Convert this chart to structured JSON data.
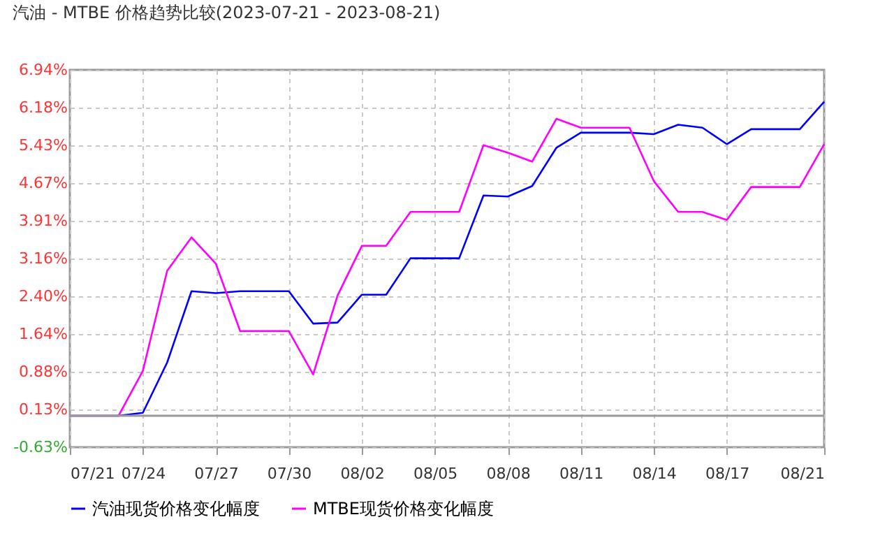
{
  "chart_data": {
    "type": "line",
    "title": "汽油 - MTBE 价格趋势比较(2023-07-21 - 2023-08-21)",
    "x": [
      "2023-07-21",
      "2023-07-22",
      "2023-07-23",
      "2023-07-24",
      "2023-07-25",
      "2023-07-26",
      "2023-07-27",
      "2023-07-28",
      "2023-07-29",
      "2023-07-30",
      "2023-07-31",
      "2023-08-01",
      "2023-08-02",
      "2023-08-03",
      "2023-08-04",
      "2023-08-05",
      "2023-08-06",
      "2023-08-07",
      "2023-08-08",
      "2023-08-09",
      "2023-08-10",
      "2023-08-11",
      "2023-08-12",
      "2023-08-13",
      "2023-08-14",
      "2023-08-15",
      "2023-08-16",
      "2023-08-17",
      "2023-08-18",
      "2023-08-19",
      "2023-08-20",
      "2023-08-21"
    ],
    "series": [
      {
        "name": "汽油现货价格变化幅度",
        "color": "#0000ff",
        "values": [
          0,
          0,
          0,
          0.06,
          1.07,
          2.5,
          2.46,
          2.5,
          2.5,
          2.5,
          1.85,
          1.87,
          2.43,
          2.43,
          3.16,
          3.16,
          3.16,
          4.42,
          4.4,
          4.61,
          5.38,
          5.68,
          5.68,
          5.68,
          5.65,
          5.84,
          5.78,
          5.45,
          5.75,
          5.75,
          5.75,
          6.3
        ]
      },
      {
        "name": "MTBE现货价格变化幅度",
        "color": "#ff00ff",
        "values": [
          0,
          0,
          0,
          0.9,
          2.91,
          3.58,
          3.05,
          1.7,
          1.7,
          1.7,
          0.83,
          2.41,
          3.41,
          3.41,
          4.09,
          4.09,
          4.09,
          5.43,
          5.28,
          5.1,
          5.96,
          5.78,
          5.78,
          5.78,
          4.71,
          4.09,
          4.09,
          3.93,
          4.59,
          4.59,
          4.59,
          5.45
        ]
      }
    ],
    "xlim": [
      "2023-07-21",
      "2023-08-21"
    ],
    "xticks": [
      {
        "value": "2023-07-21",
        "label": "07/21"
      },
      {
        "value": "2023-07-24",
        "label": "07/24"
      },
      {
        "value": "2023-07-27",
        "label": "07/27"
      },
      {
        "value": "2023-07-30",
        "label": "07/30"
      },
      {
        "value": "2023-08-02",
        "label": "08/02"
      },
      {
        "value": "2023-08-05",
        "label": "08/05"
      },
      {
        "value": "2023-08-08",
        "label": "08/08"
      },
      {
        "value": "2023-08-11",
        "label": "08/11"
      },
      {
        "value": "2023-08-14",
        "label": "08/14"
      },
      {
        "value": "2023-08-17",
        "label": "08/17"
      },
      {
        "value": "2023-08-21",
        "label": "08/21"
      }
    ],
    "ylim": [
      -0.63,
      6.94
    ],
    "yticks": [
      {
        "value": -0.63,
        "label": "-0.63%"
      },
      {
        "value": 0.13,
        "label": "0.13%"
      },
      {
        "value": 0.88,
        "label": "0.88%"
      },
      {
        "value": 1.64,
        "label": "1.64%"
      },
      {
        "value": 2.4,
        "label": "2.40%"
      },
      {
        "value": 3.16,
        "label": "3.16%"
      },
      {
        "value": 3.91,
        "label": "3.91%"
      },
      {
        "value": 4.67,
        "label": "4.67%"
      },
      {
        "value": 5.43,
        "label": "5.43%"
      },
      {
        "value": 6.18,
        "label": "6.18%"
      },
      {
        "value": 6.94,
        "label": "6.94%"
      }
    ],
    "ref_lines": [
      {
        "axis": "y",
        "value": 0,
        "color": "#999999"
      }
    ],
    "grid": true,
    "legend": "bottom left",
    "marker": "none",
    "line_style": "solid"
  }
}
